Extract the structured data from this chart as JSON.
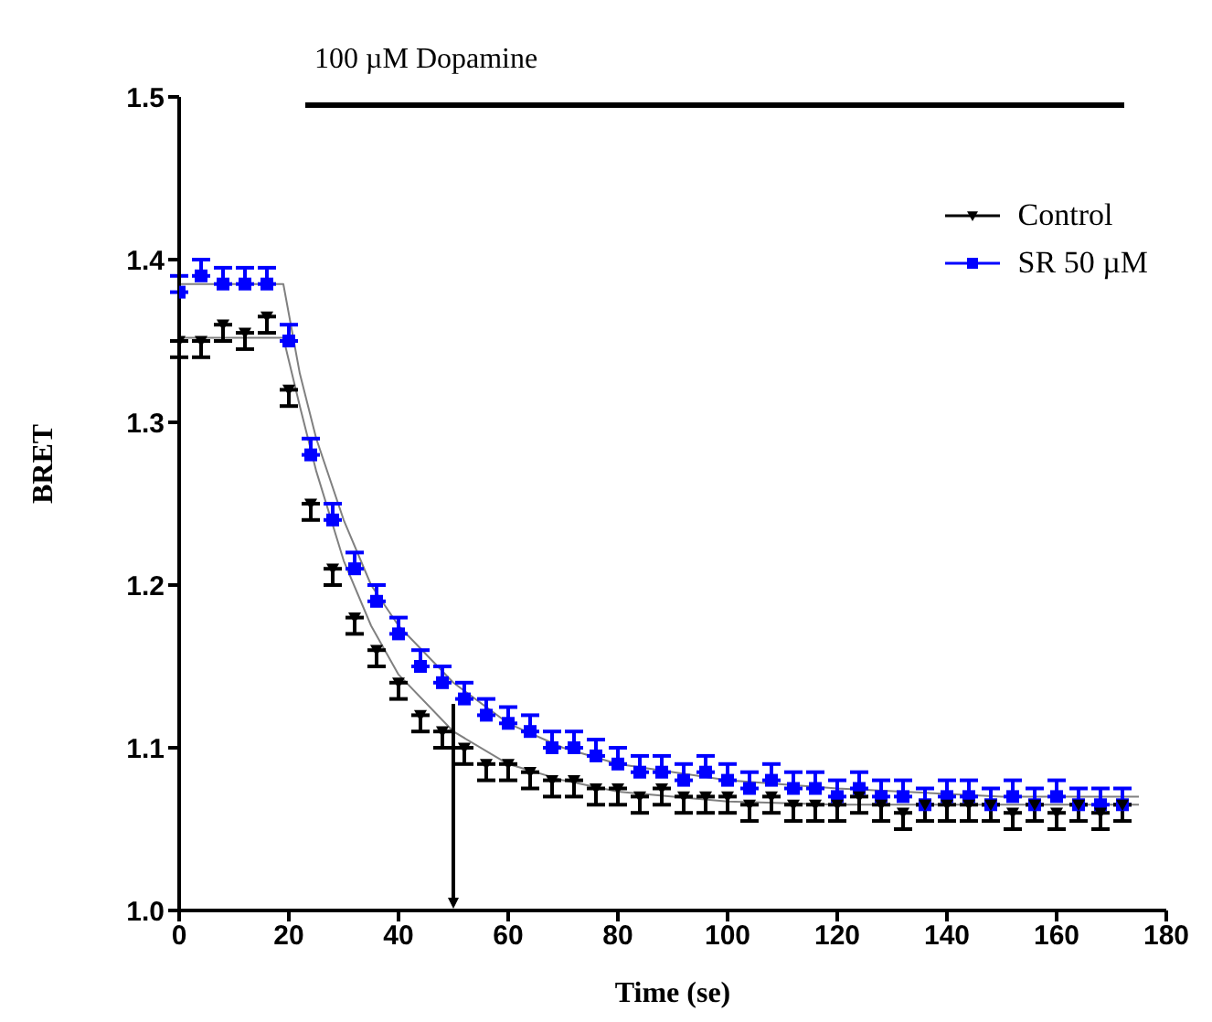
{
  "chart_data": {
    "type": "scatter",
    "xlabel": "Time (se)",
    "ylabel": "BRET",
    "xlim": [
      0,
      180
    ],
    "xticks": [
      0,
      20,
      40,
      60,
      80,
      100,
      120,
      140,
      160,
      180
    ],
    "ylim": [
      1.0,
      1.5
    ],
    "yticks": [
      {
        "value": 1.0,
        "label": "1.0"
      },
      {
        "value": 1.1,
        "label": "1.1"
      },
      {
        "value": 1.2,
        "label": "1.2"
      },
      {
        "value": 1.3,
        "label": "1.3"
      },
      {
        "value": 1.4,
        "label": "1.4"
      },
      {
        "value": 1.5,
        "label": "1.5"
      }
    ],
    "x": [
      0,
      4,
      8,
      12,
      16,
      20,
      24,
      28,
      32,
      36,
      40,
      44,
      48,
      52,
      56,
      60,
      64,
      68,
      72,
      76,
      80,
      84,
      88,
      92,
      96,
      100,
      104,
      108,
      112,
      116,
      120,
      124,
      128,
      132,
      136,
      140,
      144,
      148,
      152,
      156,
      160,
      164,
      168,
      172
    ],
    "series": [
      {
        "name": "Control",
        "marker": "triangle",
        "color": "#000000",
        "values": [
          1.35,
          1.35,
          1.36,
          1.355,
          1.365,
          1.32,
          1.25,
          1.21,
          1.18,
          1.16,
          1.14,
          1.12,
          1.11,
          1.1,
          1.09,
          1.09,
          1.085,
          1.08,
          1.08,
          1.075,
          1.075,
          1.07,
          1.075,
          1.07,
          1.07,
          1.07,
          1.065,
          1.07,
          1.065,
          1.065,
          1.065,
          1.07,
          1.065,
          1.06,
          1.065,
          1.065,
          1.065,
          1.065,
          1.06,
          1.065,
          1.06,
          1.065,
          1.06,
          1.065
        ],
        "errors": [
          [
            1.34,
            1.35
          ],
          [
            1.34,
            1.35
          ],
          [
            1.35,
            1.36
          ],
          [
            1.345,
            1.355
          ],
          [
            1.355,
            1.365
          ],
          [
            1.31,
            1.32
          ],
          [
            1.24,
            1.25
          ],
          [
            1.2,
            1.21
          ],
          [
            1.17,
            1.18
          ],
          [
            1.15,
            1.16
          ],
          [
            1.13,
            1.14
          ],
          [
            1.11,
            1.12
          ],
          [
            1.1,
            1.11
          ],
          [
            1.09,
            1.1
          ],
          [
            1.08,
            1.09
          ],
          [
            1.08,
            1.09
          ],
          [
            1.075,
            1.085
          ],
          [
            1.07,
            1.08
          ],
          [
            1.07,
            1.08
          ],
          [
            1.065,
            1.075
          ],
          [
            1.065,
            1.075
          ],
          [
            1.06,
            1.07
          ],
          [
            1.065,
            1.075
          ],
          [
            1.06,
            1.07
          ],
          [
            1.06,
            1.07
          ],
          [
            1.06,
            1.07
          ],
          [
            1.055,
            1.065
          ],
          [
            1.06,
            1.07
          ],
          [
            1.055,
            1.065
          ],
          [
            1.055,
            1.065
          ],
          [
            1.055,
            1.065
          ],
          [
            1.06,
            1.07
          ],
          [
            1.055,
            1.065
          ],
          [
            1.05,
            1.06
          ],
          [
            1.055,
            1.065
          ],
          [
            1.055,
            1.065
          ],
          [
            1.055,
            1.065
          ],
          [
            1.055,
            1.065
          ],
          [
            1.05,
            1.06
          ],
          [
            1.055,
            1.065
          ],
          [
            1.05,
            1.06
          ],
          [
            1.055,
            1.065
          ],
          [
            1.05,
            1.06
          ],
          [
            1.055,
            1.065
          ]
        ]
      },
      {
        "name": "SR 50 µM",
        "marker": "square",
        "color": "#0000ff",
        "values": [
          1.38,
          1.39,
          1.385,
          1.385,
          1.385,
          1.35,
          1.28,
          1.24,
          1.21,
          1.19,
          1.17,
          1.15,
          1.14,
          1.13,
          1.12,
          1.115,
          1.11,
          1.1,
          1.1,
          1.095,
          1.09,
          1.085,
          1.085,
          1.08,
          1.085,
          1.08,
          1.075,
          1.08,
          1.075,
          1.075,
          1.07,
          1.075,
          1.07,
          1.07,
          1.065,
          1.07,
          1.07,
          1.065,
          1.07,
          1.065,
          1.07,
          1.065,
          1.065,
          1.065
        ],
        "errors": [
          [
            1.38,
            1.39
          ],
          [
            1.39,
            1.4
          ],
          [
            1.385,
            1.395
          ],
          [
            1.385,
            1.395
          ],
          [
            1.385,
            1.395
          ],
          [
            1.35,
            1.36
          ],
          [
            1.28,
            1.29
          ],
          [
            1.24,
            1.25
          ],
          [
            1.21,
            1.22
          ],
          [
            1.19,
            1.2
          ],
          [
            1.17,
            1.18
          ],
          [
            1.15,
            1.16
          ],
          [
            1.14,
            1.15
          ],
          [
            1.13,
            1.14
          ],
          [
            1.12,
            1.13
          ],
          [
            1.115,
            1.125
          ],
          [
            1.11,
            1.12
          ],
          [
            1.1,
            1.11
          ],
          [
            1.1,
            1.11
          ],
          [
            1.095,
            1.105
          ],
          [
            1.09,
            1.1
          ],
          [
            1.085,
            1.095
          ],
          [
            1.085,
            1.095
          ],
          [
            1.08,
            1.09
          ],
          [
            1.085,
            1.095
          ],
          [
            1.08,
            1.09
          ],
          [
            1.075,
            1.085
          ],
          [
            1.08,
            1.09
          ],
          [
            1.075,
            1.085
          ],
          [
            1.075,
            1.085
          ],
          [
            1.07,
            1.08
          ],
          [
            1.075,
            1.085
          ],
          [
            1.07,
            1.08
          ],
          [
            1.07,
            1.08
          ],
          [
            1.065,
            1.075
          ],
          [
            1.07,
            1.08
          ],
          [
            1.07,
            1.08
          ],
          [
            1.065,
            1.075
          ],
          [
            1.07,
            1.08
          ],
          [
            1.065,
            1.075
          ],
          [
            1.07,
            1.08
          ],
          [
            1.065,
            1.075
          ],
          [
            1.065,
            1.075
          ],
          [
            1.065,
            1.075
          ]
        ]
      },
      {
        "type": "line",
        "color": "#808080",
        "x": [
          0,
          19,
          22,
          25,
          30,
          35,
          40,
          50,
          60,
          70,
          80,
          100,
          120,
          150,
          175
        ],
        "values": [
          1.352,
          1.352,
          1.31,
          1.27,
          1.215,
          1.175,
          1.145,
          1.11,
          1.09,
          1.08,
          1.073,
          1.067,
          1.065,
          1.065,
          1.065
        ]
      },
      {
        "type": "line",
        "color": "#808080",
        "x": [
          0,
          19,
          22,
          25,
          30,
          35,
          40,
          50,
          60,
          70,
          80,
          100,
          120,
          150,
          175
        ],
        "values": [
          1.385,
          1.385,
          1.33,
          1.29,
          1.24,
          1.2,
          1.175,
          1.14,
          1.115,
          1.1,
          1.09,
          1.08,
          1.075,
          1.07,
          1.07
        ]
      }
    ],
    "annotations": [
      "100 µM Dopamine"
    ],
    "legend": "top right"
  }
}
